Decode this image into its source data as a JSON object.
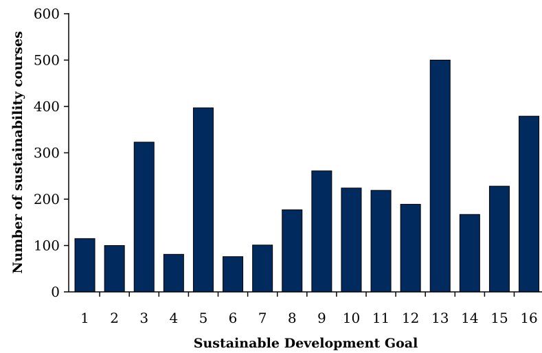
{
  "chart_data": {
    "type": "bar",
    "categories": [
      "1",
      "2",
      "3",
      "4",
      "5",
      "6",
      "7",
      "8",
      "9",
      "10",
      "11",
      "12",
      "13",
      "14",
      "15",
      "16"
    ],
    "values": [
      115,
      100,
      323,
      81,
      397,
      76,
      101,
      177,
      261,
      224,
      219,
      189,
      500,
      167,
      228,
      379
    ],
    "title": "",
    "xlabel": "Sustainable Development Goal",
    "ylabel": "Number of sustainability courses",
    "ylim": [
      0,
      600
    ],
    "yticks": [
      0,
      100,
      200,
      300,
      400,
      500,
      600
    ],
    "grid": false,
    "legend": "none",
    "bar_color": "#012a5f",
    "bar_edge_color": "#000000"
  }
}
